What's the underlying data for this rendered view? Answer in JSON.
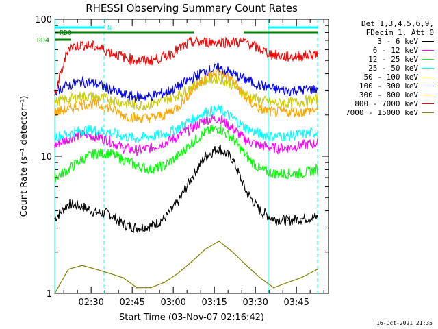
{
  "chart_data": {
    "type": "line",
    "title": "RHESSI Observing Summary Count Rates",
    "xlabel": "Start Time (03-Nov-07 02:16:42)",
    "ylabel": "Count Rate (s⁻¹ detector⁻¹)",
    "yscale": "log",
    "ylim": [
      1,
      100
    ],
    "ytick_labels": [
      "1",
      "10",
      "100"
    ],
    "x_unit": "minutes after 02:16:42",
    "xlim": [
      0,
      100
    ],
    "xtick_labels": [
      "02:30",
      "02:45",
      "03:00",
      "03:15",
      "03:30",
      "03:45"
    ],
    "xtick_values": [
      13.3,
      28.3,
      43.3,
      58.3,
      73.3,
      88.3
    ],
    "grid": false,
    "legend_position": "right",
    "legend_header": [
      "Det 1,3,4,5,6,9,",
      "FDecim 1, Att 0"
    ],
    "flags": [
      {
        "label": "N",
        "color": "#00ffff",
        "segments": [
          [
            0,
            18
          ],
          [
            78,
            96
          ]
        ]
      },
      {
        "label": "RD0",
        "color": "#008000",
        "segments": [
          [
            0,
            51
          ],
          [
            69,
            96
          ]
        ]
      },
      {
        "label": "RD4",
        "color": "#008000",
        "segments": [
          [
            0,
            6
          ]
        ]
      }
    ],
    "vlines": [
      {
        "x": 0,
        "style": "solid",
        "color": "#00ffff"
      },
      {
        "x": 18,
        "style": "dashed",
        "color": "#00ffff"
      },
      {
        "x": 78,
        "style": "solid",
        "color": "#00ffff"
      },
      {
        "x": 96,
        "style": "dashed",
        "color": "#00ffff"
      }
    ],
    "series": [
      {
        "name": "3 - 6 keV",
        "color": "#000000",
        "x": [
          0,
          5,
          10,
          15,
          20,
          25,
          30,
          35,
          40,
          45,
          50,
          55,
          60,
          65,
          70,
          75,
          80,
          85,
          90,
          96
        ],
        "y": [
          3.5,
          4.5,
          4.3,
          3.9,
          3.8,
          3.2,
          3.0,
          3.1,
          3.5,
          4.6,
          7.0,
          10.0,
          11.5,
          9.5,
          5.5,
          4.0,
          3.5,
          3.4,
          3.5,
          3.6
        ]
      },
      {
        "name": "6 - 12 keV",
        "color": "#ff00ff",
        "x": [
          0,
          5,
          10,
          15,
          20,
          25,
          30,
          35,
          40,
          45,
          50,
          55,
          60,
          65,
          70,
          75,
          80,
          85,
          90,
          96
        ],
        "y": [
          12,
          13.5,
          14.5,
          14,
          13,
          11.5,
          11,
          11.5,
          12.5,
          14,
          16,
          18.5,
          19,
          16,
          13,
          12,
          11.5,
          11.5,
          12,
          12.5
        ]
      },
      {
        "name": "12 - 25 keV",
        "color": "#00ff00",
        "x": [
          0,
          5,
          10,
          15,
          20,
          25,
          30,
          35,
          40,
          45,
          50,
          55,
          60,
          65,
          70,
          75,
          80,
          85,
          90,
          96
        ],
        "y": [
          7,
          8,
          9.5,
          10.5,
          10.5,
          9.5,
          8.5,
          8,
          8.5,
          10,
          12.5,
          15,
          16,
          13.5,
          10,
          8,
          7.5,
          7.5,
          7.5,
          8
        ]
      },
      {
        "name": "25 - 50 keV",
        "color": "#00ffff",
        "x": [
          0,
          5,
          10,
          15,
          20,
          25,
          30,
          35,
          40,
          45,
          50,
          55,
          60,
          65,
          70,
          75,
          80,
          85,
          90,
          96
        ],
        "y": [
          14,
          14.5,
          15.5,
          15.5,
          15,
          14,
          13.5,
          14,
          14.5,
          16,
          18.5,
          21,
          22,
          19,
          16,
          14.5,
          14,
          14,
          14.5,
          15
        ]
      },
      {
        "name": "50 - 100 keV",
        "color": "#cccc00",
        "x": [
          0,
          5,
          10,
          15,
          20,
          25,
          30,
          35,
          40,
          45,
          50,
          55,
          60,
          65,
          70,
          75,
          80,
          85,
          90,
          96
        ],
        "y": [
          25,
          26,
          27.5,
          27,
          26,
          24.5,
          23.5,
          24,
          25.5,
          28,
          32,
          36,
          37,
          33,
          28,
          25.5,
          24.5,
          24.5,
          25,
          26
        ]
      },
      {
        "name": "100 - 300 keV",
        "color": "#0000ff",
        "x": [
          0,
          5,
          10,
          15,
          20,
          25,
          30,
          35,
          40,
          45,
          50,
          55,
          60,
          65,
          70,
          75,
          80,
          85,
          90,
          96
        ],
        "y": [
          30,
          33,
          35,
          34,
          31,
          28,
          27,
          27.5,
          29,
          32,
          37,
          42,
          44,
          40,
          36,
          33,
          31,
          30,
          30.5,
          31
        ]
      },
      {
        "name": "300 - 800 keV",
        "color": "#ffa500",
        "x": [
          0,
          5,
          10,
          15,
          20,
          25,
          30,
          35,
          40,
          45,
          50,
          55,
          60,
          65,
          70,
          75,
          80,
          85,
          90,
          96
        ],
        "y": [
          21,
          22,
          24,
          24,
          22.5,
          20,
          19,
          19,
          20,
          23,
          30,
          38,
          41,
          36,
          26,
          22,
          21,
          21,
          21,
          22
        ]
      },
      {
        "name": "800 - 7000 keV",
        "color": "#ff0000",
        "x": [
          0,
          5,
          10,
          15,
          20,
          25,
          30,
          35,
          40,
          45,
          50,
          55,
          60,
          65,
          70,
          75,
          80,
          85,
          90,
          96
        ],
        "y": [
          28,
          62,
          65,
          63,
          58,
          53,
          50,
          50,
          53,
          60,
          68,
          68,
          68,
          68,
          68,
          60,
          55,
          53,
          54,
          56
        ]
      },
      {
        "name": "7000 - 15000 keV",
        "color": "#808000",
        "x": [
          0,
          5,
          10,
          15,
          20,
          25,
          30,
          35,
          40,
          45,
          50,
          55,
          60,
          65,
          70,
          75,
          80,
          85,
          90,
          96
        ],
        "y": [
          1,
          1.5,
          1.6,
          1.5,
          1.4,
          1.3,
          1.1,
          1.1,
          1.2,
          1.4,
          1.7,
          2.1,
          2.4,
          2.0,
          1.6,
          1.3,
          1.1,
          1.2,
          1.3,
          1.5
        ]
      }
    ],
    "timestamp": "16-Oct-2021 21:35"
  }
}
